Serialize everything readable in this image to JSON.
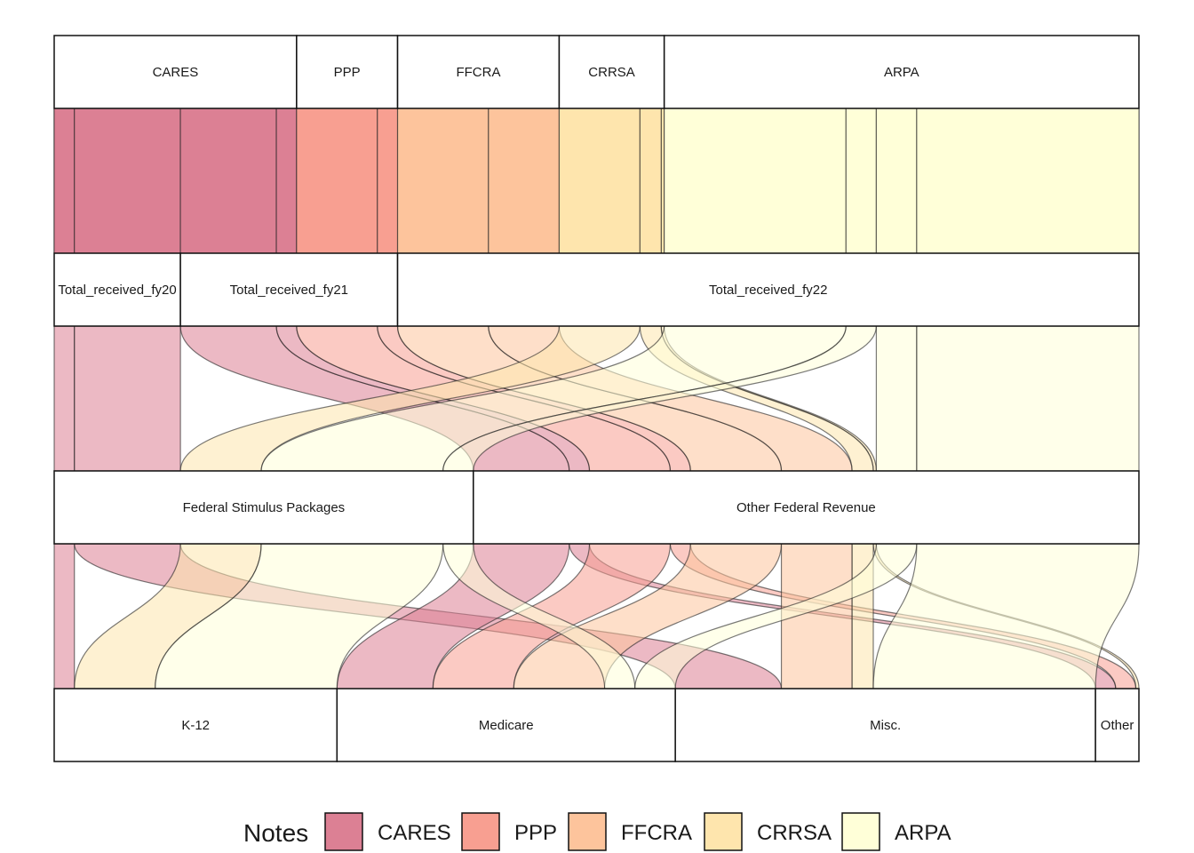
{
  "chart_data": {
    "type": "alluvial",
    "axes": [
      {
        "name": "",
        "strata": [
          {
            "label": "CARES",
            "value": 2.4
          },
          {
            "label": "PPP",
            "value": 1.0
          },
          {
            "label": "FFCRA",
            "value": 1.6
          },
          {
            "label": "CRRSA",
            "value": 1.04
          },
          {
            "label": "ARPA",
            "value": 4.7
          }
        ]
      },
      {
        "name": "",
        "strata": [
          {
            "label": "Total_received_fy20",
            "value": 1.25
          },
          {
            "label": "Total_received_fy21",
            "value": 2.15
          },
          {
            "label": "Total_received_fy22",
            "value": 7.34
          }
        ]
      },
      {
        "name": "",
        "strata": [
          {
            "label": "Federal Stimulus Packages",
            "value": 4.15
          },
          {
            "label": "Other Federal Revenue",
            "value": 6.59
          }
        ]
      },
      {
        "name": "",
        "strata": [
          {
            "label": "K-12",
            "value": 2.8
          },
          {
            "label": "Medicare",
            "value": 3.35
          },
          {
            "label": "Misc.",
            "value": 4.16
          },
          {
            "label": "Other",
            "value": 0.43
          }
        ]
      }
    ],
    "flows": [
      {
        "package": "CARES",
        "path": [
          "CARES",
          "Total_received_fy20",
          "Federal Stimulus Packages",
          "K-12"
        ],
        "value": 0.2
      },
      {
        "package": "CARES",
        "path": [
          "CARES",
          "Total_received_fy20",
          "Federal Stimulus Packages",
          "Misc."
        ],
        "value": 1.05
      },
      {
        "package": "CARES",
        "path": [
          "CARES",
          "Total_received_fy21",
          "Other Federal Revenue",
          "Medicare"
        ],
        "value": 0.95
      },
      {
        "package": "CARES",
        "path": [
          "CARES",
          "Total_received_fy21",
          "Other Federal Revenue",
          "Other"
        ],
        "value": 0.2
      },
      {
        "package": "PPP",
        "path": [
          "PPP",
          "Total_received_fy21",
          "Other Federal Revenue",
          "Medicare"
        ],
        "value": 0.8
      },
      {
        "package": "PPP",
        "path": [
          "PPP",
          "Total_received_fy21",
          "Other Federal Revenue",
          "Other"
        ],
        "value": 0.2
      },
      {
        "package": "FFCRA",
        "path": [
          "FFCRA",
          "Total_received_fy22",
          "Other Federal Revenue",
          "Medicare"
        ],
        "value": 0.9
      },
      {
        "package": "FFCRA",
        "path": [
          "FFCRA",
          "Total_received_fy22",
          "Other Federal Revenue",
          "Misc."
        ],
        "value": 0.7
      },
      {
        "package": "CRRSA",
        "path": [
          "CRRSA",
          "Total_received_fy22",
          "Federal Stimulus Packages",
          "K-12"
        ],
        "value": 0.8
      },
      {
        "package": "CRRSA",
        "path": [
          "CRRSA",
          "Total_received_fy22",
          "Other Federal Revenue",
          "Other"
        ],
        "value": 0.03
      },
      {
        "package": "CRRSA",
        "path": [
          "CRRSA",
          "Total_received_fy22",
          "Other Federal Revenue",
          "Misc."
        ],
        "value": 0.21
      },
      {
        "package": "ARPA",
        "path": [
          "ARPA",
          "Total_received_fy22",
          "Federal Stimulus Packages",
          "K-12"
        ],
        "value": 1.8
      },
      {
        "package": "ARPA",
        "path": [
          "ARPA",
          "Total_received_fy22",
          "Federal Stimulus Packages",
          "Medicare"
        ],
        "value": 0.3
      },
      {
        "package": "ARPA",
        "path": [
          "ARPA",
          "Total_received_fy22",
          "Other Federal Revenue",
          "Medicare"
        ],
        "value": 0.4
      },
      {
        "package": "ARPA",
        "path": [
          "ARPA",
          "Total_received_fy22",
          "Other Federal Revenue",
          "Misc."
        ],
        "value": 2.2
      }
    ],
    "legend": {
      "title": "Notes",
      "position": "bottom",
      "entries": [
        {
          "label": "CARES",
          "color": "#dc8094"
        },
        {
          "label": "PPP",
          "color": "#f89f91"
        },
        {
          "label": "FFCRA",
          "color": "#fdc49c"
        },
        {
          "label": "CRRSA",
          "color": "#fee5ad"
        },
        {
          "label": "ARPA",
          "color": "#ffffd8"
        }
      ]
    },
    "grid": false
  }
}
